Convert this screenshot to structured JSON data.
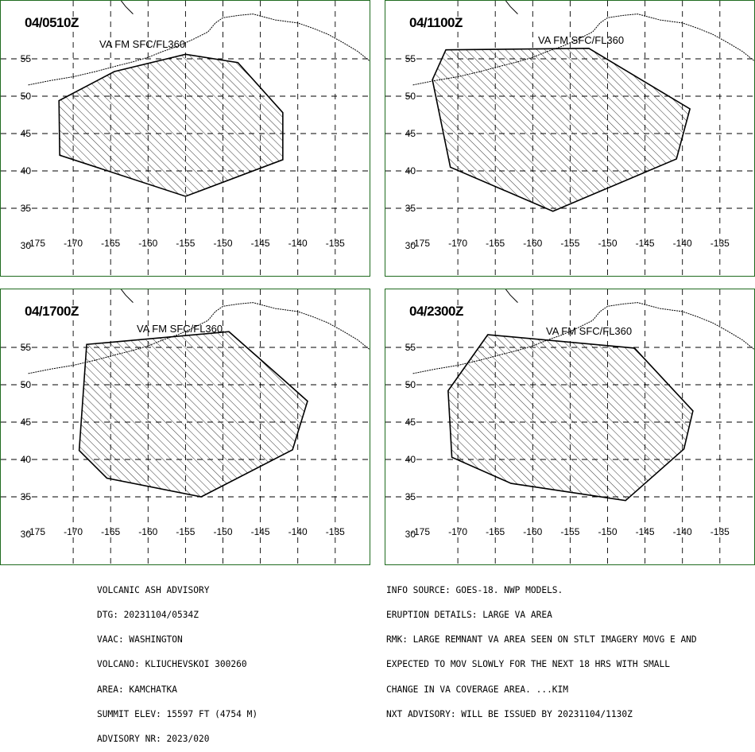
{
  "panels": [
    {
      "time": "04/0510Z",
      "va_label": "VA FM SFC/FL360",
      "ash_polygon": [
        [
          -164.5,
          53.3
        ],
        [
          -155,
          55.6
        ],
        [
          -148,
          54.5
        ],
        [
          -142,
          47.8
        ],
        [
          -142,
          41.5
        ],
        [
          -155,
          36.6
        ],
        [
          -171.8,
          42.1
        ],
        [
          -171.9,
          49.4
        ]
      ]
    },
    {
      "time": "04/1100Z",
      "va_label": "VA FM SFC/FL360",
      "ash_polygon": [
        [
          -171.6,
          56.2
        ],
        [
          -152.5,
          56.4
        ],
        [
          -139,
          48.3
        ],
        [
          -140.8,
          41.6
        ],
        [
          -157.3,
          34.6
        ],
        [
          -171,
          40.5
        ],
        [
          -173.4,
          52.2
        ]
      ]
    },
    {
      "time": "04/1700Z",
      "va_label": "VA FM SFC/FL360",
      "ash_polygon": [
        [
          -168.2,
          55.4
        ],
        [
          -149.2,
          57.1
        ],
        [
          -141.6,
          50.4
        ],
        [
          -138.7,
          47.8
        ],
        [
          -140.7,
          41.3
        ],
        [
          -152.9,
          35
        ],
        [
          -165.5,
          37.5
        ],
        [
          -169.2,
          41.2
        ]
      ]
    },
    {
      "time": "04/2300Z",
      "va_label": "VA FM SFC/FL360",
      "ash_polygon": [
        [
          -166,
          56.7
        ],
        [
          -146.4,
          54.9
        ],
        [
          -138.6,
          46.5
        ],
        [
          -139.8,
          41.4
        ],
        [
          -147.6,
          34.5
        ],
        [
          -162.9,
          36.8
        ],
        [
          -170.8,
          40.3
        ],
        [
          -171.3,
          49.2
        ]
      ]
    }
  ],
  "lat_ticks": [
    "55",
    "50",
    "45",
    "40",
    "35",
    "30"
  ],
  "lon_ticks": [
    "-175",
    "-170",
    "-165",
    "-160",
    "-155",
    "-150",
    "-145",
    "-140",
    "-135"
  ],
  "advisory_left": [
    "VOLCANIC ASH ADVISORY",
    "DTG: 20231104/0534Z",
    "VAAC: WASHINGTON",
    "VOLCANO: KLIUCHEVSKOI 300260",
    "AREA: KAMCHATKA",
    "SUMMIT ELEV: 15597 FT (4754 M)",
    "ADVISORY NR: 2023/020"
  ],
  "advisory_right": [
    "INFO SOURCE: GOES-18. NWP MODELS.",
    "ERUPTION DETAILS: LARGE VA AREA",
    "RMK: LARGE REMNANT VA AREA SEEN ON STLT IMAGERY MOVG E AND",
    "EXPECTED TO MOV SLOWLY FOR THE NEXT 18 HRS WITH SMALL",
    "CHANGE IN VA COVERAGE AREA. ...KIM",
    "NXT ADVISORY: WILL BE ISSUED BY 20231104/1130Z"
  ],
  "colors": {
    "panel_border": "#1f6b1f",
    "ink": "#000000"
  }
}
